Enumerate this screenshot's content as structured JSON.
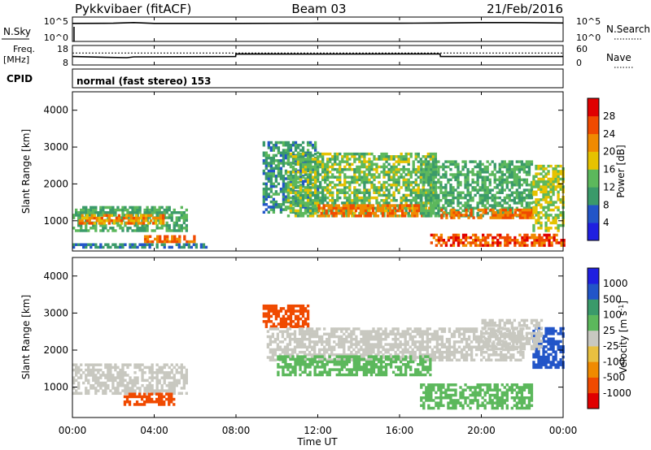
{
  "header": {
    "station": "Pykkvibaer (fitACF)",
    "beam": "Beam 03",
    "date": "21/Feb/2016"
  },
  "nsky_panel": {
    "left_label": "N.Sky",
    "right_label": "N.Search",
    "left_ticks": [
      "10^5",
      "10^0"
    ],
    "right_ticks": [
      "10^5",
      "10^0"
    ]
  },
  "freq_panel": {
    "left_label_line1": "Freq.",
    "left_label_line2": "[MHz]",
    "right_label": "Nave",
    "left_ticks": [
      "18",
      "8"
    ],
    "right_ticks": [
      "60",
      "0"
    ]
  },
  "cpid": {
    "label": "CPID",
    "text": "normal (fast stereo) 153"
  },
  "x_axis": {
    "label": "Time UT",
    "ticks": [
      "00:00",
      "04:00",
      "08:00",
      "12:00",
      "16:00",
      "20:00",
      "00:00"
    ]
  },
  "colors": {
    "power_scale": [
      "#1f1fe0",
      "#2255c8",
      "#3a9a6a",
      "#5cb85c",
      "#e6c200",
      "#f08a00",
      "#f04a00",
      "#e00000"
    ],
    "velocity_scale": [
      "#e00000",
      "#f04a00",
      "#f08a00",
      "#e8c040",
      "#c8c8c0",
      "#5cb85c",
      "#3a9a6a",
      "#2255c8",
      "#1f1fe0"
    ]
  },
  "chart_data": [
    {
      "type": "line",
      "title": "N.Sky",
      "x": [
        "00:00",
        "02:00",
        "03:00",
        "04:00",
        "06:00",
        "08:00",
        "12:00",
        "16:00",
        "18:00",
        "20:00",
        "22:00",
        "00:00"
      ],
      "ylim": [
        0,
        5
      ],
      "yscale": "log10",
      "series": [
        {
          "name": "N.Sky",
          "values": [
            4.1,
            4.15,
            4.3,
            4.1,
            4.1,
            4.1,
            4.15,
            4.15,
            4.2,
            4.3,
            4.3,
            4.2
          ]
        },
        {
          "name": "N.Search",
          "values": [
            4.0,
            4.0,
            4.0,
            4.0,
            4.0,
            4.0,
            4.0,
            4.0,
            4.0,
            4.0,
            4.0,
            4.0
          ]
        }
      ]
    },
    {
      "type": "line",
      "title": "Freq.",
      "ylabel": "[MHz]",
      "ylim": [
        8,
        18
      ],
      "x": [
        "00:00",
        "02:40",
        "03:00",
        "07:59",
        "08:00",
        "12:00",
        "16:00",
        "17:59",
        "18:00",
        "00:00"
      ],
      "series": [
        {
          "name": "Freq.",
          "values": [
            12.2,
            11.5,
            12.0,
            12.2,
            13.8,
            13.7,
            13.8,
            13.8,
            12.2,
            12.2
          ]
        },
        {
          "name": "Nave",
          "values": [
            14.4,
            14.4,
            14.4,
            14.4,
            14.4,
            14.4,
            14.4,
            14.4,
            14.4,
            14.4
          ]
        }
      ]
    },
    {
      "type": "heatmap",
      "title": "Power",
      "colorbar_label": "Power [dB]",
      "colorbar_ticks": [
        4,
        8,
        12,
        16,
        20,
        24,
        28
      ],
      "zlim": [
        0,
        32
      ],
      "xlabel": "Time UT",
      "ylabel": "Slant Range [km]",
      "yticks": [
        1000,
        2000,
        3000,
        4000
      ],
      "ylim": [
        180,
        4500
      ],
      "xlim_hours": [
        0,
        24
      ],
      "regions": [
        {
          "t0": 0.0,
          "t1": 5.6,
          "r0": 700,
          "r1": 1400,
          "z": 12
        },
        {
          "t0": 0.3,
          "t1": 4.5,
          "r0": 900,
          "r1": 1150,
          "z": 22
        },
        {
          "t0": 3.5,
          "t1": 6.0,
          "r0": 400,
          "r1": 600,
          "z": 24
        },
        {
          "t0": 0.0,
          "t1": 6.5,
          "r0": 250,
          "r1": 350,
          "z": 8
        },
        {
          "t0": 9.3,
          "t1": 12.0,
          "r0": 1200,
          "r1": 3100,
          "z": 10
        },
        {
          "t0": 10.5,
          "t1": 17.8,
          "r0": 1100,
          "r1": 2800,
          "z": 14
        },
        {
          "t0": 12.0,
          "t1": 17.5,
          "r0": 1100,
          "r1": 1400,
          "z": 24
        },
        {
          "t0": 17.0,
          "t1": 22.5,
          "r0": 1100,
          "r1": 2600,
          "z": 12
        },
        {
          "t0": 18.0,
          "t1": 22.5,
          "r0": 1050,
          "r1": 1300,
          "z": 24
        },
        {
          "t0": 17.5,
          "t1": 24.0,
          "r0": 300,
          "r1": 600,
          "z": 26
        },
        {
          "t0": 22.5,
          "t1": 24.0,
          "r0": 700,
          "r1": 2500,
          "z": 16
        }
      ]
    },
    {
      "type": "heatmap",
      "title": "Velocity",
      "colorbar_label": "Velocity [m s^-1]",
      "colorbar_ticks": [
        1000,
        500,
        100,
        25,
        -25,
        -100,
        -500,
        -1000
      ],
      "xlabel": "Time UT",
      "ylabel": "Slant Range [km]",
      "yticks": [
        1000,
        2000,
        3000,
        4000
      ],
      "ylim": [
        180,
        4500
      ],
      "xlim_hours": [
        0,
        24
      ],
      "regions": [
        {
          "t0": 0.0,
          "t1": 5.6,
          "r0": 800,
          "r1": 1600,
          "z": 0
        },
        {
          "t0": 2.5,
          "t1": 5.0,
          "r0": 500,
          "r1": 800,
          "z": -300
        },
        {
          "t0": 9.3,
          "t1": 11.5,
          "r0": 2600,
          "r1": 3200,
          "z": -300
        },
        {
          "t0": 9.5,
          "t1": 22.0,
          "r0": 1700,
          "r1": 2600,
          "z": 0
        },
        {
          "t0": 10.0,
          "t1": 17.5,
          "r0": 1300,
          "r1": 1800,
          "z": 50
        },
        {
          "t0": 17.0,
          "t1": 22.5,
          "r0": 400,
          "r1": 1100,
          "z": 80
        },
        {
          "t0": 22.5,
          "t1": 24.0,
          "r0": 1500,
          "r1": 2600,
          "z": 600
        },
        {
          "t0": 20.0,
          "t1": 23.0,
          "r0": 2000,
          "r1": 2800,
          "z": 0
        }
      ]
    }
  ]
}
